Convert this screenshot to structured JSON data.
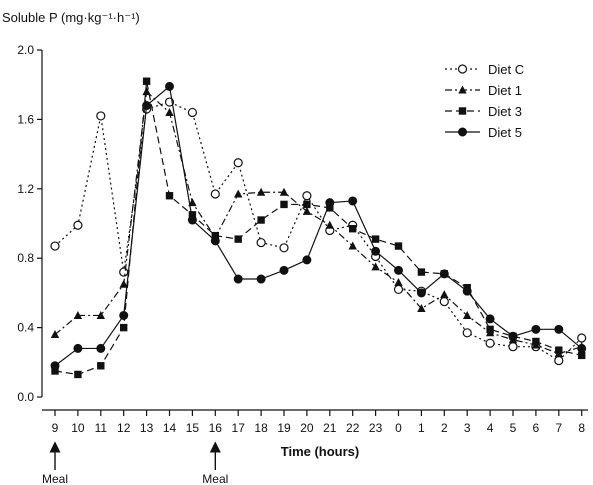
{
  "chart_data": {
    "type": "line",
    "title": "Soluble P (mg·kg⁻¹·h⁻¹)",
    "xlabel": "Time (hours)",
    "ylabel": "Soluble P (mg·kg⁻¹·h⁻¹)",
    "ylim": [
      0.0,
      2.0
    ],
    "yticks": [
      "0.0",
      "0.4",
      "0.8",
      "1.2",
      "1.6",
      "2.0"
    ],
    "categories": [
      "9",
      "10",
      "11",
      "12",
      "13",
      "14",
      "15",
      "16",
      "17",
      "18",
      "19",
      "20",
      "21",
      "22",
      "23",
      "0",
      "1",
      "2",
      "3",
      "4",
      "5",
      "6",
      "7",
      "8"
    ],
    "legend_position": "top-right",
    "grid": false,
    "series": [
      {
        "name": "Diet C",
        "marker": "open-circle",
        "linestyle": "dotted",
        "values": [
          0.87,
          0.99,
          1.62,
          0.72,
          1.66,
          1.7,
          1.64,
          1.17,
          1.35,
          0.89,
          0.86,
          1.16,
          0.96,
          0.99,
          0.81,
          0.62,
          0.61,
          0.55,
          0.37,
          0.31,
          0.29,
          0.29,
          0.21,
          0.34
        ]
      },
      {
        "name": "Diet 1",
        "marker": "filled-triangle",
        "linestyle": "dash-dot",
        "values": [
          0.36,
          0.47,
          0.47,
          0.65,
          1.76,
          1.64,
          1.12,
          0.92,
          1.17,
          1.18,
          1.18,
          1.07,
          0.99,
          0.87,
          0.75,
          0.66,
          0.51,
          0.59,
          0.47,
          0.37,
          0.33,
          0.3,
          0.25,
          0.29
        ]
      },
      {
        "name": "Diet 3",
        "marker": "filled-square",
        "linestyle": "dashed",
        "values": [
          0.15,
          0.13,
          0.18,
          0.4,
          1.82,
          1.16,
          1.05,
          0.93,
          0.91,
          1.02,
          1.11,
          1.11,
          1.09,
          0.97,
          0.91,
          0.87,
          0.72,
          0.71,
          0.63,
          0.39,
          0.35,
          0.32,
          0.27,
          0.24
        ]
      },
      {
        "name": "Diet 5",
        "marker": "filled-circle",
        "linestyle": "solid",
        "values": [
          0.18,
          0.28,
          0.28,
          0.47,
          1.68,
          1.79,
          1.02,
          0.9,
          0.68,
          0.68,
          0.73,
          0.79,
          1.12,
          1.13,
          0.84,
          0.73,
          0.6,
          0.71,
          0.61,
          0.45,
          0.35,
          0.39,
          0.39,
          0.28
        ]
      }
    ],
    "annotations": [
      {
        "text": "Meal",
        "at_category": "9"
      },
      {
        "text": "Meal",
        "at_category": "16"
      }
    ]
  }
}
